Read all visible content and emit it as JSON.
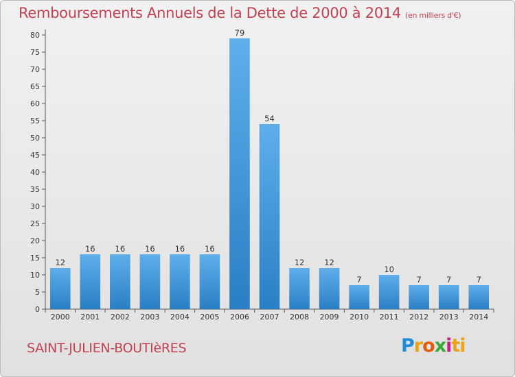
{
  "header": {
    "title": "Remboursements Annuels de la Dette de 2000 à 2014",
    "subtitle": "(en milliers d'€)"
  },
  "footer": {
    "commune": "SAINT-JULIEN-BOUTIèRES",
    "logo": [
      "P",
      "r",
      "o",
      "x",
      "i",
      "ti"
    ]
  },
  "colors": {
    "bar_light": "#5eaeea",
    "bar_dark": "#2a7fc4",
    "title": "#c04252"
  },
  "chart_data": {
    "type": "bar",
    "title": "Remboursements Annuels de la Dette de 2000 à 2014",
    "subtitle": "(en milliers d'€)",
    "xlabel": "",
    "ylabel": "",
    "categories": [
      "2000",
      "2001",
      "2002",
      "2003",
      "2004",
      "2005",
      "2006",
      "2007",
      "2008",
      "2009",
      "2010",
      "2011",
      "2012",
      "2013",
      "2014"
    ],
    "values": [
      12,
      16,
      16,
      16,
      16,
      16,
      79,
      54,
      12,
      12,
      7,
      10,
      7,
      7,
      7
    ],
    "ylim": [
      0,
      80
    ],
    "yticks": [
      0,
      5,
      10,
      15,
      20,
      25,
      30,
      35,
      40,
      45,
      50,
      55,
      60,
      65,
      70,
      75,
      80
    ],
    "grid": false
  }
}
